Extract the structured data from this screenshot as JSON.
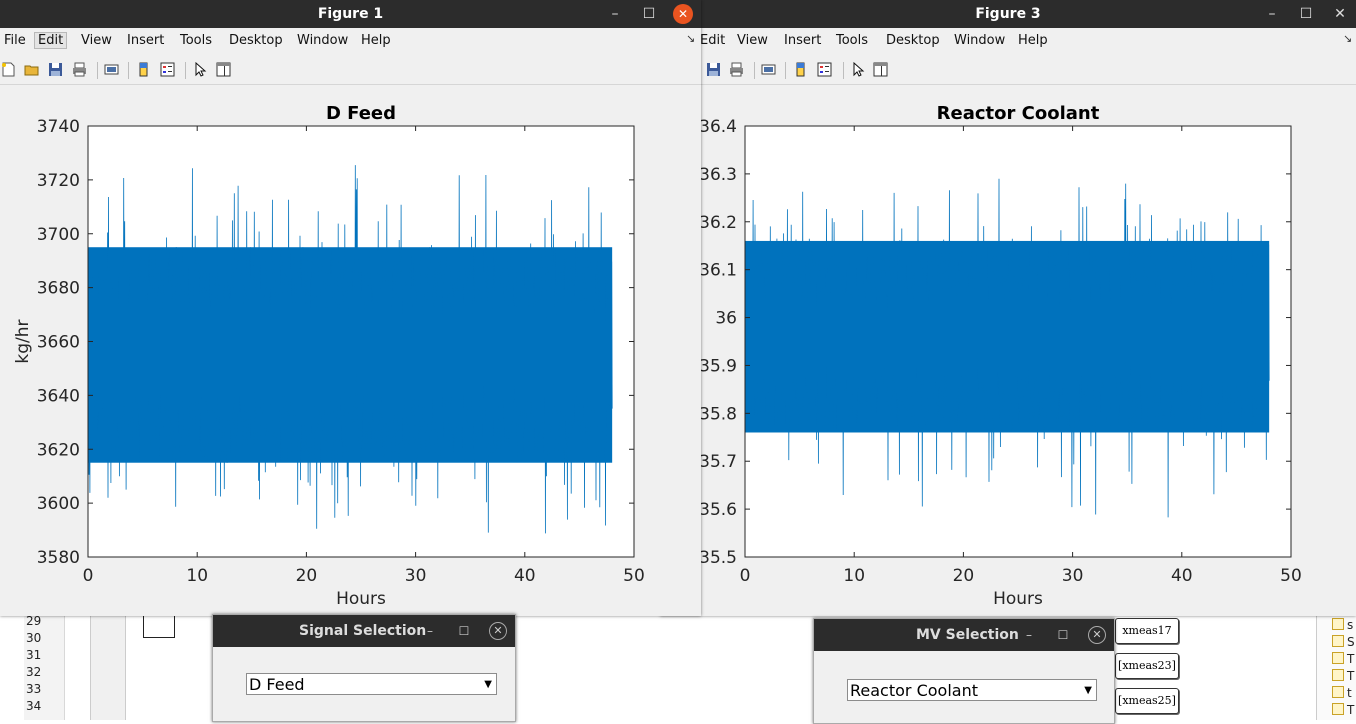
{
  "background": {
    "line_numbers": [
      "29",
      "30",
      "31",
      "32",
      "33",
      "34"
    ],
    "tags": [
      "xmeas17",
      "[xmeas23]",
      "[xmeas25]"
    ],
    "right_items": [
      "s",
      "S",
      "T",
      "T",
      "t",
      "T"
    ]
  },
  "figure1": {
    "window_title": "Figure 1",
    "menu": [
      "File",
      "Edit",
      "View",
      "Insert",
      "Tools",
      "Desktop",
      "Window",
      "Help"
    ],
    "chart_data": {
      "type": "line",
      "title": "D Feed",
      "xlabel": "Hours",
      "ylabel": "kg/hr",
      "xlim": [
        0,
        50
      ],
      "ylim": [
        3580,
        3740
      ],
      "x_ticks": [
        "0",
        "10",
        "20",
        "30",
        "40",
        "50"
      ],
      "y_ticks": [
        "3580",
        "3600",
        "3620",
        "3640",
        "3660",
        "3680",
        "3700",
        "3720",
        "3740"
      ],
      "series": [
        {
          "color": "#0072bd",
          "x_range": [
            0,
            48
          ],
          "mean": 3657,
          "band_low": 3615,
          "band_high": 3695,
          "min": 3584,
          "max": 3727
        }
      ]
    }
  },
  "figure3": {
    "window_title": "Figure 3",
    "menu": [
      "Edit",
      "View",
      "Insert",
      "Tools",
      "Desktop",
      "Window",
      "Help"
    ],
    "chart_data": {
      "type": "line",
      "title": "Reactor Coolant",
      "xlabel": "Hours",
      "ylabel": "",
      "xlim": [
        0,
        50
      ],
      "ylim": [
        35.5,
        36.4
      ],
      "x_ticks": [
        "0",
        "10",
        "20",
        "30",
        "40",
        "50"
      ],
      "y_ticks": [
        "35.5",
        "35.6",
        "35.7",
        "35.8",
        "35.9",
        "36",
        "36.1",
        "36.2",
        "36.3",
        "36.4"
      ],
      "series": [
        {
          "color": "#0072bd",
          "x_range": [
            0,
            48
          ],
          "mean": 35.96,
          "band_low": 35.76,
          "band_high": 36.16,
          "min": 35.55,
          "max": 36.32
        }
      ]
    }
  },
  "signal_selection": {
    "title": "Signal Selection",
    "selected": "D Feed"
  },
  "mv_selection": {
    "title": "MV Selection",
    "selected": "Reactor Coolant"
  }
}
